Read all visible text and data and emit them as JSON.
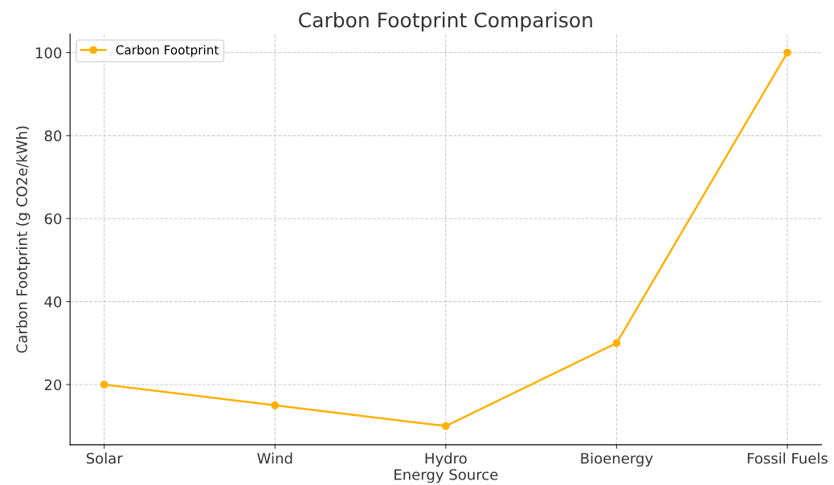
{
  "chart_data": {
    "type": "line",
    "title": "Carbon Footprint Comparison",
    "xlabel": "Energy Source",
    "ylabel": "Carbon Footprint (g CO2e/kWh)",
    "categories": [
      "Solar",
      "Wind",
      "Hydro",
      "Bioenergy",
      "Fossil Fuels"
    ],
    "series": [
      {
        "name": "Carbon Footprint",
        "color": "#ffb000",
        "values": [
          20,
          15,
          10,
          30,
          100
        ]
      }
    ],
    "ylim": [
      5.5,
      104.5
    ],
    "yticks": [
      20,
      40,
      60,
      80,
      100
    ],
    "grid": true,
    "legend": "top left",
    "marker": "circle",
    "line_style": "solid"
  }
}
